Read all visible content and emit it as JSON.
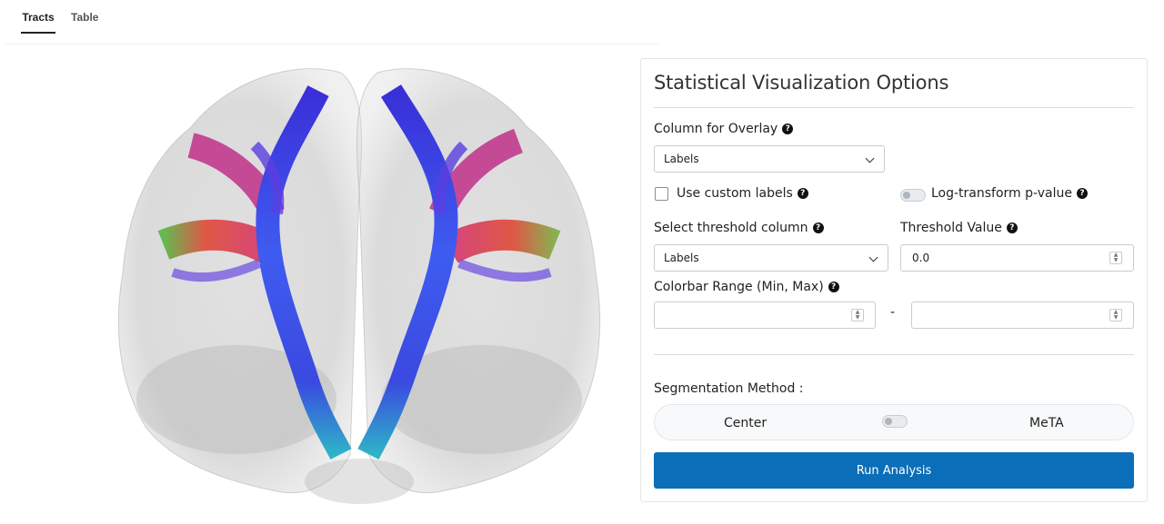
{
  "tabs": [
    {
      "label": "Tracts",
      "active": true
    },
    {
      "label": "Table",
      "active": false
    }
  ],
  "visualization": {
    "description_icon": "brain-tractography-image"
  },
  "panel": {
    "title": "Statistical Visualization Options",
    "overlay": {
      "label": "Column for Overlay",
      "value": "Labels"
    },
    "custom_labels": {
      "label": "Use custom labels",
      "checked": false
    },
    "log_transform": {
      "label": "Log-transform p-value",
      "enabled": false
    },
    "threshold_column": {
      "label": "Select threshold column",
      "value": "Labels"
    },
    "threshold_value": {
      "label": "Threshold Value",
      "value": "0.0"
    },
    "colorbar": {
      "label": "Colorbar Range (Min, Max)",
      "min": "",
      "max": "",
      "separator": "-"
    },
    "segmentation": {
      "label": "Segmentation Method :",
      "left_option": "Center",
      "right_option": "MeTA",
      "enabled": false
    },
    "run_button": "Run Analysis"
  },
  "colors": {
    "accent": "#0a6eb8",
    "border": "#c8ccd1"
  }
}
